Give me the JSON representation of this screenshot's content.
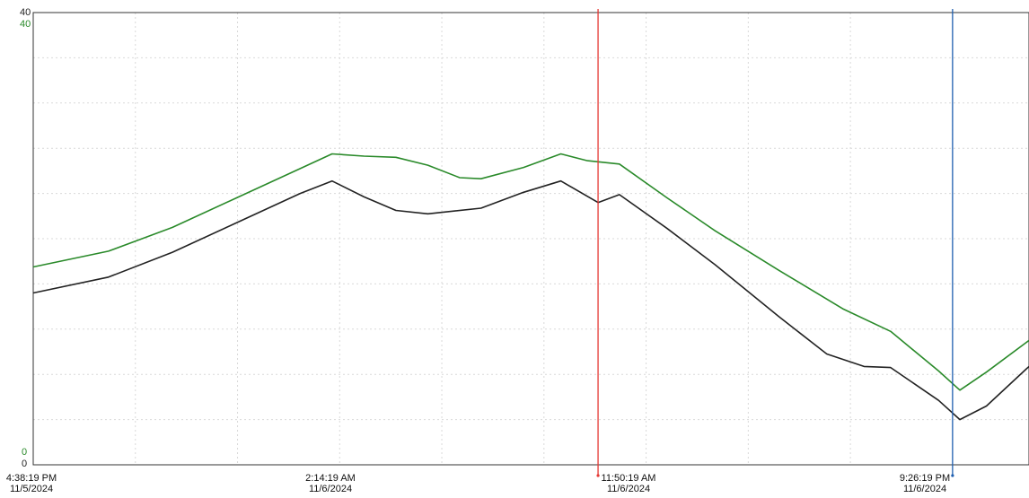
{
  "chart_data": {
    "type": "line",
    "title": "",
    "xlabel": "",
    "ylabel": "",
    "ylim": [
      0,
      40
    ],
    "grid": true,
    "x_range": [
      "11/5/2024 4:38:19 PM",
      "11/6/2024 11:50:00 PM"
    ],
    "y_axis_black": {
      "ticks": [
        {
          "label": "40",
          "value": 40
        },
        {
          "label": "0",
          "value": 0
        }
      ],
      "color": "#222222"
    },
    "y_axis_green": {
      "ticks": [
        {
          "label": "40",
          "value": 40
        },
        {
          "label": "0",
          "value": 0
        }
      ],
      "color": "#2a8a2a"
    },
    "x_tick_labels": [
      {
        "time": "4:38:19 PM",
        "date": "11/5/2024"
      },
      {
        "time": "2:14:19 AM",
        "date": "11/6/2024"
      },
      {
        "time": "11:50:19 AM",
        "date": "11/6/2024"
      },
      {
        "time": "9:26:19 PM",
        "date": "11/6/2024"
      }
    ],
    "cursors": [
      {
        "name": "red-cursor",
        "time": "11/6/2024 10:20:00 AM",
        "color": "#e53935"
      },
      {
        "name": "blue-cursor",
        "time": "11/6/2024 9:26:19 PM",
        "color": "#1f5fb0"
      }
    ],
    "series": [
      {
        "color": "#2a8a2a",
        "points": [
          [
            "11/5/2024 4:38:19 PM",
            17.5
          ],
          [
            "11/5/2024 7:00:00 PM",
            18.9
          ],
          [
            "11/5/2024 9:00:00 PM",
            21.0
          ],
          [
            "11/5/2024 11:00:00 PM",
            23.6
          ],
          [
            "11/6/2024 1:00:00 AM",
            26.2
          ],
          [
            "11/6/2024 2:00:00 AM",
            27.5
          ],
          [
            "11/6/2024 3:00:00 AM",
            27.3
          ],
          [
            "11/6/2024 4:00:00 AM",
            27.2
          ],
          [
            "11/6/2024 5:00:00 AM",
            26.5
          ],
          [
            "11/6/2024 6:00:00 AM",
            25.4
          ],
          [
            "11/6/2024 6:40:00 AM",
            25.3
          ],
          [
            "11/6/2024 8:00:00 AM",
            26.3
          ],
          [
            "11/6/2024 9:10:00 AM",
            27.5
          ],
          [
            "11/6/2024 10:00:00 AM",
            26.9
          ],
          [
            "11/6/2024 11:00:00 AM",
            26.6
          ],
          [
            "11/6/2024 12:30:00 PM",
            23.6
          ],
          [
            "11/6/2024 2:00:00 PM",
            20.7
          ],
          [
            "11/6/2024 4:00:00 PM",
            17.2
          ],
          [
            "11/6/2024 6:00:00 PM",
            13.8
          ],
          [
            "11/6/2024 7:30:00 PM",
            11.8
          ],
          [
            "11/6/2024 9:00:00 PM",
            8.3
          ],
          [
            "11/6/2024 9:40:00 PM",
            6.6
          ],
          [
            "11/6/2024 10:30:00 PM",
            8.2
          ],
          [
            "11/6/2024 11:50:00 PM",
            11.0
          ]
        ]
      },
      {
        "color": "#222222",
        "points": [
          [
            "11/5/2024 4:38:19 PM",
            15.2
          ],
          [
            "11/5/2024 7:00:00 PM",
            16.6
          ],
          [
            "11/5/2024 9:00:00 PM",
            18.8
          ],
          [
            "11/5/2024 11:00:00 PM",
            21.4
          ],
          [
            "11/6/2024 1:00:00 AM",
            24.0
          ],
          [
            "11/6/2024 2:00:00 AM",
            25.1
          ],
          [
            "11/6/2024 3:00:00 AM",
            23.7
          ],
          [
            "11/6/2024 4:00:00 AM",
            22.5
          ],
          [
            "11/6/2024 5:00:00 AM",
            22.2
          ],
          [
            "11/6/2024 6:40:00 AM",
            22.7
          ],
          [
            "11/6/2024 8:00:00 AM",
            24.1
          ],
          [
            "11/6/2024 9:10:00 AM",
            25.1
          ],
          [
            "11/6/2024 10:20:00 AM",
            23.2
          ],
          [
            "11/6/2024 11:00:00 AM",
            23.9
          ],
          [
            "11/6/2024 12:30:00 PM",
            20.9
          ],
          [
            "11/6/2024 2:00:00 PM",
            17.7
          ],
          [
            "11/6/2024 4:00:00 PM",
            13.1
          ],
          [
            "11/6/2024 5:30:00 PM",
            9.8
          ],
          [
            "11/6/2024 6:40:00 PM",
            8.7
          ],
          [
            "11/6/2024 7:30:00 PM",
            8.6
          ],
          [
            "11/6/2024 9:00:00 PM",
            5.7
          ],
          [
            "11/6/2024 9:40:00 PM",
            4.0
          ],
          [
            "11/6/2024 10:30:00 PM",
            5.2
          ],
          [
            "11/6/2024 11:50:00 PM",
            8.7
          ]
        ]
      }
    ]
  }
}
